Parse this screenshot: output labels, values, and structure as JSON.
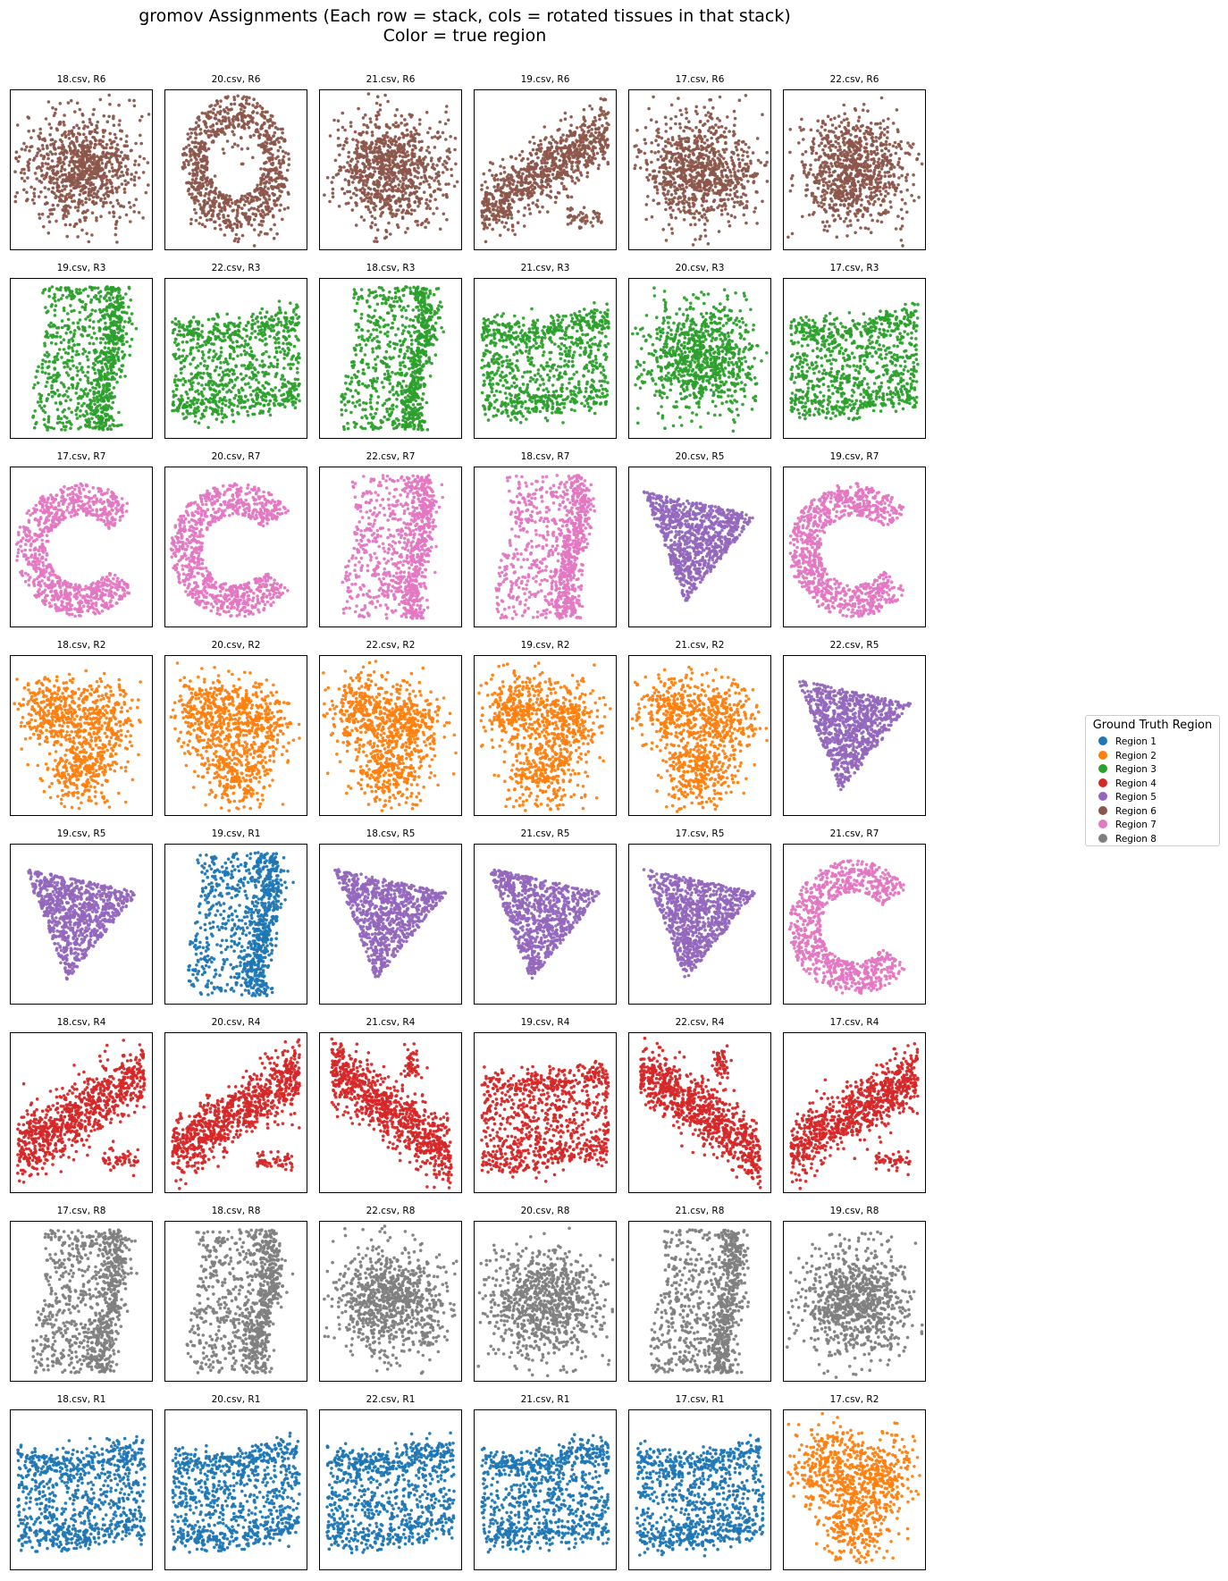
{
  "chart_data": {
    "type": "scatter",
    "title": "gromov Assignments (Each row = stack, cols = rotated tissues in that stack)",
    "subtitle": "Color = true region",
    "xlabel": "",
    "ylabel": "",
    "grid": false,
    "axis_ticks": false,
    "legend": {
      "title": "Ground Truth Region",
      "placement": "right",
      "entries": [
        {
          "label": "Region 1",
          "color": "#1f77b4"
        },
        {
          "label": "Region 2",
          "color": "#ff7f0e"
        },
        {
          "label": "Region 3",
          "color": "#2ca02c"
        },
        {
          "label": "Region 4",
          "color": "#d62728"
        },
        {
          "label": "Region 5",
          "color": "#9467bd"
        },
        {
          "label": "Region 6",
          "color": "#8c564b"
        },
        {
          "label": "Region 7",
          "color": "#e377c2"
        },
        {
          "label": "Region 8",
          "color": "#7f7f7f"
        }
      ]
    },
    "rows": 8,
    "cols": 6,
    "panels": [
      {
        "title": "18.csv, R6",
        "region": 6,
        "shape": "blob"
      },
      {
        "title": "20.csv, R6",
        "region": 6,
        "shape": "loop"
      },
      {
        "title": "21.csv, R6",
        "region": 6,
        "shape": "blob"
      },
      {
        "title": "19.csv, R6",
        "region": 6,
        "shape": "diag_up"
      },
      {
        "title": "17.csv, R6",
        "region": 6,
        "shape": "blob"
      },
      {
        "title": "22.csv, R6",
        "region": 6,
        "shape": "blob"
      },
      {
        "title": "19.csv, R3",
        "region": 3,
        "shape": "vertical_c"
      },
      {
        "title": "22.csv, R3",
        "region": 3,
        "shape": "horizontal_band"
      },
      {
        "title": "18.csv, R3",
        "region": 3,
        "shape": "vertical_c"
      },
      {
        "title": "21.csv, R3",
        "region": 3,
        "shape": "horizontal_band"
      },
      {
        "title": "20.csv, R3",
        "region": 3,
        "shape": "blob"
      },
      {
        "title": "17.csv, R3",
        "region": 3,
        "shape": "horizontal_band"
      },
      {
        "title": "17.csv, R7",
        "region": 7,
        "shape": "c_shape"
      },
      {
        "title": "20.csv, R7",
        "region": 7,
        "shape": "c_shape"
      },
      {
        "title": "22.csv, R7",
        "region": 7,
        "shape": "vertical_c"
      },
      {
        "title": "18.csv, R7",
        "region": 7,
        "shape": "vertical_c"
      },
      {
        "title": "20.csv, R5",
        "region": 5,
        "shape": "triangle"
      },
      {
        "title": "19.csv, R7",
        "region": 7,
        "shape": "c_shape"
      },
      {
        "title": "18.csv, R2",
        "region": 2,
        "shape": "lobes"
      },
      {
        "title": "20.csv, R2",
        "region": 2,
        "shape": "lobes"
      },
      {
        "title": "22.csv, R2",
        "region": 2,
        "shape": "lobes"
      },
      {
        "title": "19.csv, R2",
        "region": 2,
        "shape": "lobes"
      },
      {
        "title": "21.csv, R2",
        "region": 2,
        "shape": "lobes"
      },
      {
        "title": "22.csv, R5",
        "region": 5,
        "shape": "triangle"
      },
      {
        "title": "19.csv, R5",
        "region": 5,
        "shape": "triangle"
      },
      {
        "title": "19.csv, R1",
        "region": 1,
        "shape": "vertical_c"
      },
      {
        "title": "18.csv, R5",
        "region": 5,
        "shape": "triangle"
      },
      {
        "title": "21.csv, R5",
        "region": 5,
        "shape": "triangle"
      },
      {
        "title": "17.csv, R5",
        "region": 5,
        "shape": "triangle"
      },
      {
        "title": "21.csv, R7",
        "region": 7,
        "shape": "c_shape"
      },
      {
        "title": "18.csv, R4",
        "region": 4,
        "shape": "diag_up"
      },
      {
        "title": "20.csv, R4",
        "region": 4,
        "shape": "diag_up"
      },
      {
        "title": "21.csv, R4",
        "region": 4,
        "shape": "diag_down"
      },
      {
        "title": "19.csv, R4",
        "region": 4,
        "shape": "horizontal_band"
      },
      {
        "title": "22.csv, R4",
        "region": 4,
        "shape": "diag_down"
      },
      {
        "title": "17.csv, R4",
        "region": 4,
        "shape": "diag_up"
      },
      {
        "title": "17.csv, R8",
        "region": 8,
        "shape": "vertical_c"
      },
      {
        "title": "18.csv, R8",
        "region": 8,
        "shape": "vertical_c"
      },
      {
        "title": "22.csv, R8",
        "region": 8,
        "shape": "blob"
      },
      {
        "title": "20.csv, R8",
        "region": 8,
        "shape": "blob"
      },
      {
        "title": "21.csv, R8",
        "region": 8,
        "shape": "vertical_c"
      },
      {
        "title": "19.csv, R8",
        "region": 8,
        "shape": "blob"
      },
      {
        "title": "18.csv, R1",
        "region": 1,
        "shape": "horizontal_band"
      },
      {
        "title": "20.csv, R1",
        "region": 1,
        "shape": "horizontal_band"
      },
      {
        "title": "22.csv, R1",
        "region": 1,
        "shape": "horizontal_band"
      },
      {
        "title": "21.csv, R1",
        "region": 1,
        "shape": "horizontal_band"
      },
      {
        "title": "17.csv, R1",
        "region": 1,
        "shape": "horizontal_band"
      },
      {
        "title": "17.csv, R2",
        "region": 2,
        "shape": "lobes"
      }
    ]
  }
}
